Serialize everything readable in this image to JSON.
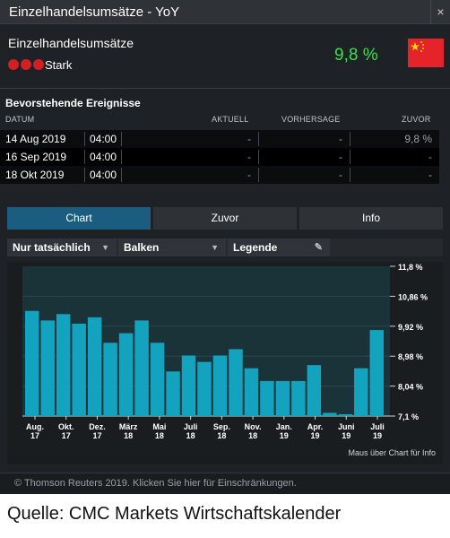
{
  "window": {
    "title": "Einzelhandelsumsätze - YoY",
    "close_glyph": "×"
  },
  "indicator": {
    "name": "Einzelhandelsumsätze",
    "importance": "Stark",
    "value": "9,8 %",
    "flag": "china-flag-icon"
  },
  "events": {
    "title": "Bevorstehende Ereignisse",
    "headers": {
      "date": "DATUM",
      "actual": "AKTUELL",
      "forecast": "VORHERSAGE",
      "previous": "ZUVOR"
    },
    "rows": [
      {
        "date": "14 Aug 2019",
        "time": "04:00",
        "actual": "-",
        "forecast": "-",
        "previous": "9,8 %"
      },
      {
        "date": "16 Sep 2019",
        "time": "04:00",
        "actual": "-",
        "forecast": "-",
        "previous": "-"
      },
      {
        "date": "18 Okt 2019",
        "time": "04:00",
        "actual": "-",
        "forecast": "-",
        "previous": "-"
      }
    ]
  },
  "tabs": {
    "chart": "Chart",
    "previous": "Zuvor",
    "info": "Info"
  },
  "toolbar": {
    "filter": "Nur tatsächlich",
    "type": "Balken",
    "legend": "Legende"
  },
  "colors": {
    "bar": "#13a3bf",
    "accent_tab": "#1a5d80",
    "value_green": "#3ce04a",
    "importance_red": "#d21f24"
  },
  "chart_data": {
    "type": "bar",
    "ylim": [
      7.1,
      11.8
    ],
    "ytick_labels": [
      "11,8 %",
      "10,86 %",
      "9,92 %",
      "8,98 %",
      "8,04 %",
      "7,1 %"
    ],
    "x_labels": [
      [
        "Aug.",
        "17"
      ],
      [
        "Okt.",
        "17"
      ],
      [
        "Dez.",
        "17"
      ],
      [
        "März",
        "18"
      ],
      [
        "Mai",
        "18"
      ],
      [
        "Juli",
        "18"
      ],
      [
        "Sep.",
        "18"
      ],
      [
        "Nov.",
        "18"
      ],
      [
        "Jan.",
        "19"
      ],
      [
        "Apr.",
        "19"
      ],
      [
        "Juni",
        "19"
      ],
      [
        "Juli",
        "19"
      ]
    ],
    "values": [
      10.4,
      10.1,
      10.3,
      10.0,
      10.2,
      9.4,
      9.7,
      10.1,
      9.4,
      8.5,
      9.0,
      8.8,
      9.0,
      9.2,
      8.6,
      8.2,
      8.2,
      8.2,
      8.7,
      7.2,
      7.1,
      8.6,
      9.8
    ]
  },
  "hint": "Maus über Chart für Info",
  "footer": "© Thomson Reuters 2019. Klicken Sie hier für Einschränkungen.",
  "caption": "Quelle: CMC Markets Wirtschaftskalender"
}
